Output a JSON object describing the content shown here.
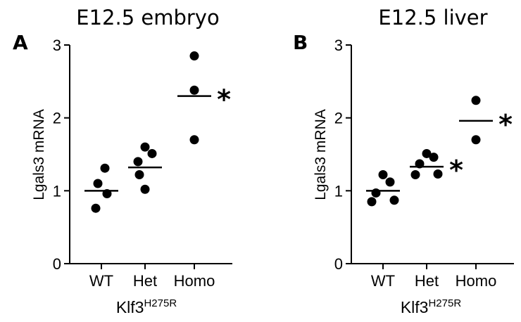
{
  "chart_data": [
    {
      "type": "scatter",
      "panel": "A",
      "title": "E12.5 embryo",
      "ylabel": "Lgals3 mRNA",
      "xlabel_main": "Klf3",
      "xlabel_sup": "H275R",
      "ylim": [
        0,
        3
      ],
      "yticks": [
        "0",
        "1",
        "2",
        "3"
      ],
      "categories": [
        "WT",
        "Het",
        "Homo"
      ],
      "points": [
        [
          1.31,
          1.1,
          0.96,
          0.76
        ],
        [
          1.6,
          1.51,
          1.4,
          1.22,
          1.02
        ],
        [
          2.85,
          2.38,
          1.7
        ]
      ],
      "means": [
        1.0,
        1.32,
        2.3
      ],
      "significance": [
        "",
        "",
        "*"
      ]
    },
    {
      "type": "scatter",
      "panel": "B",
      "title": "E12.5 liver",
      "ylabel": "Lgals3 mRNA",
      "xlabel_main": "Klf3",
      "xlabel_sup": "H275R",
      "ylim": [
        0,
        3
      ],
      "yticks": [
        "0",
        "1",
        "2",
        "3"
      ],
      "categories": [
        "WT",
        "Het",
        "Homo"
      ],
      "points": [
        [
          1.22,
          1.12,
          0.97,
          0.87,
          0.85
        ],
        [
          1.51,
          1.46,
          1.37,
          1.23,
          1.22
        ],
        [
          2.24,
          1.7
        ]
      ],
      "means": [
        1.0,
        1.33,
        1.96
      ],
      "significance": [
        "",
        "*",
        "*"
      ]
    }
  ]
}
